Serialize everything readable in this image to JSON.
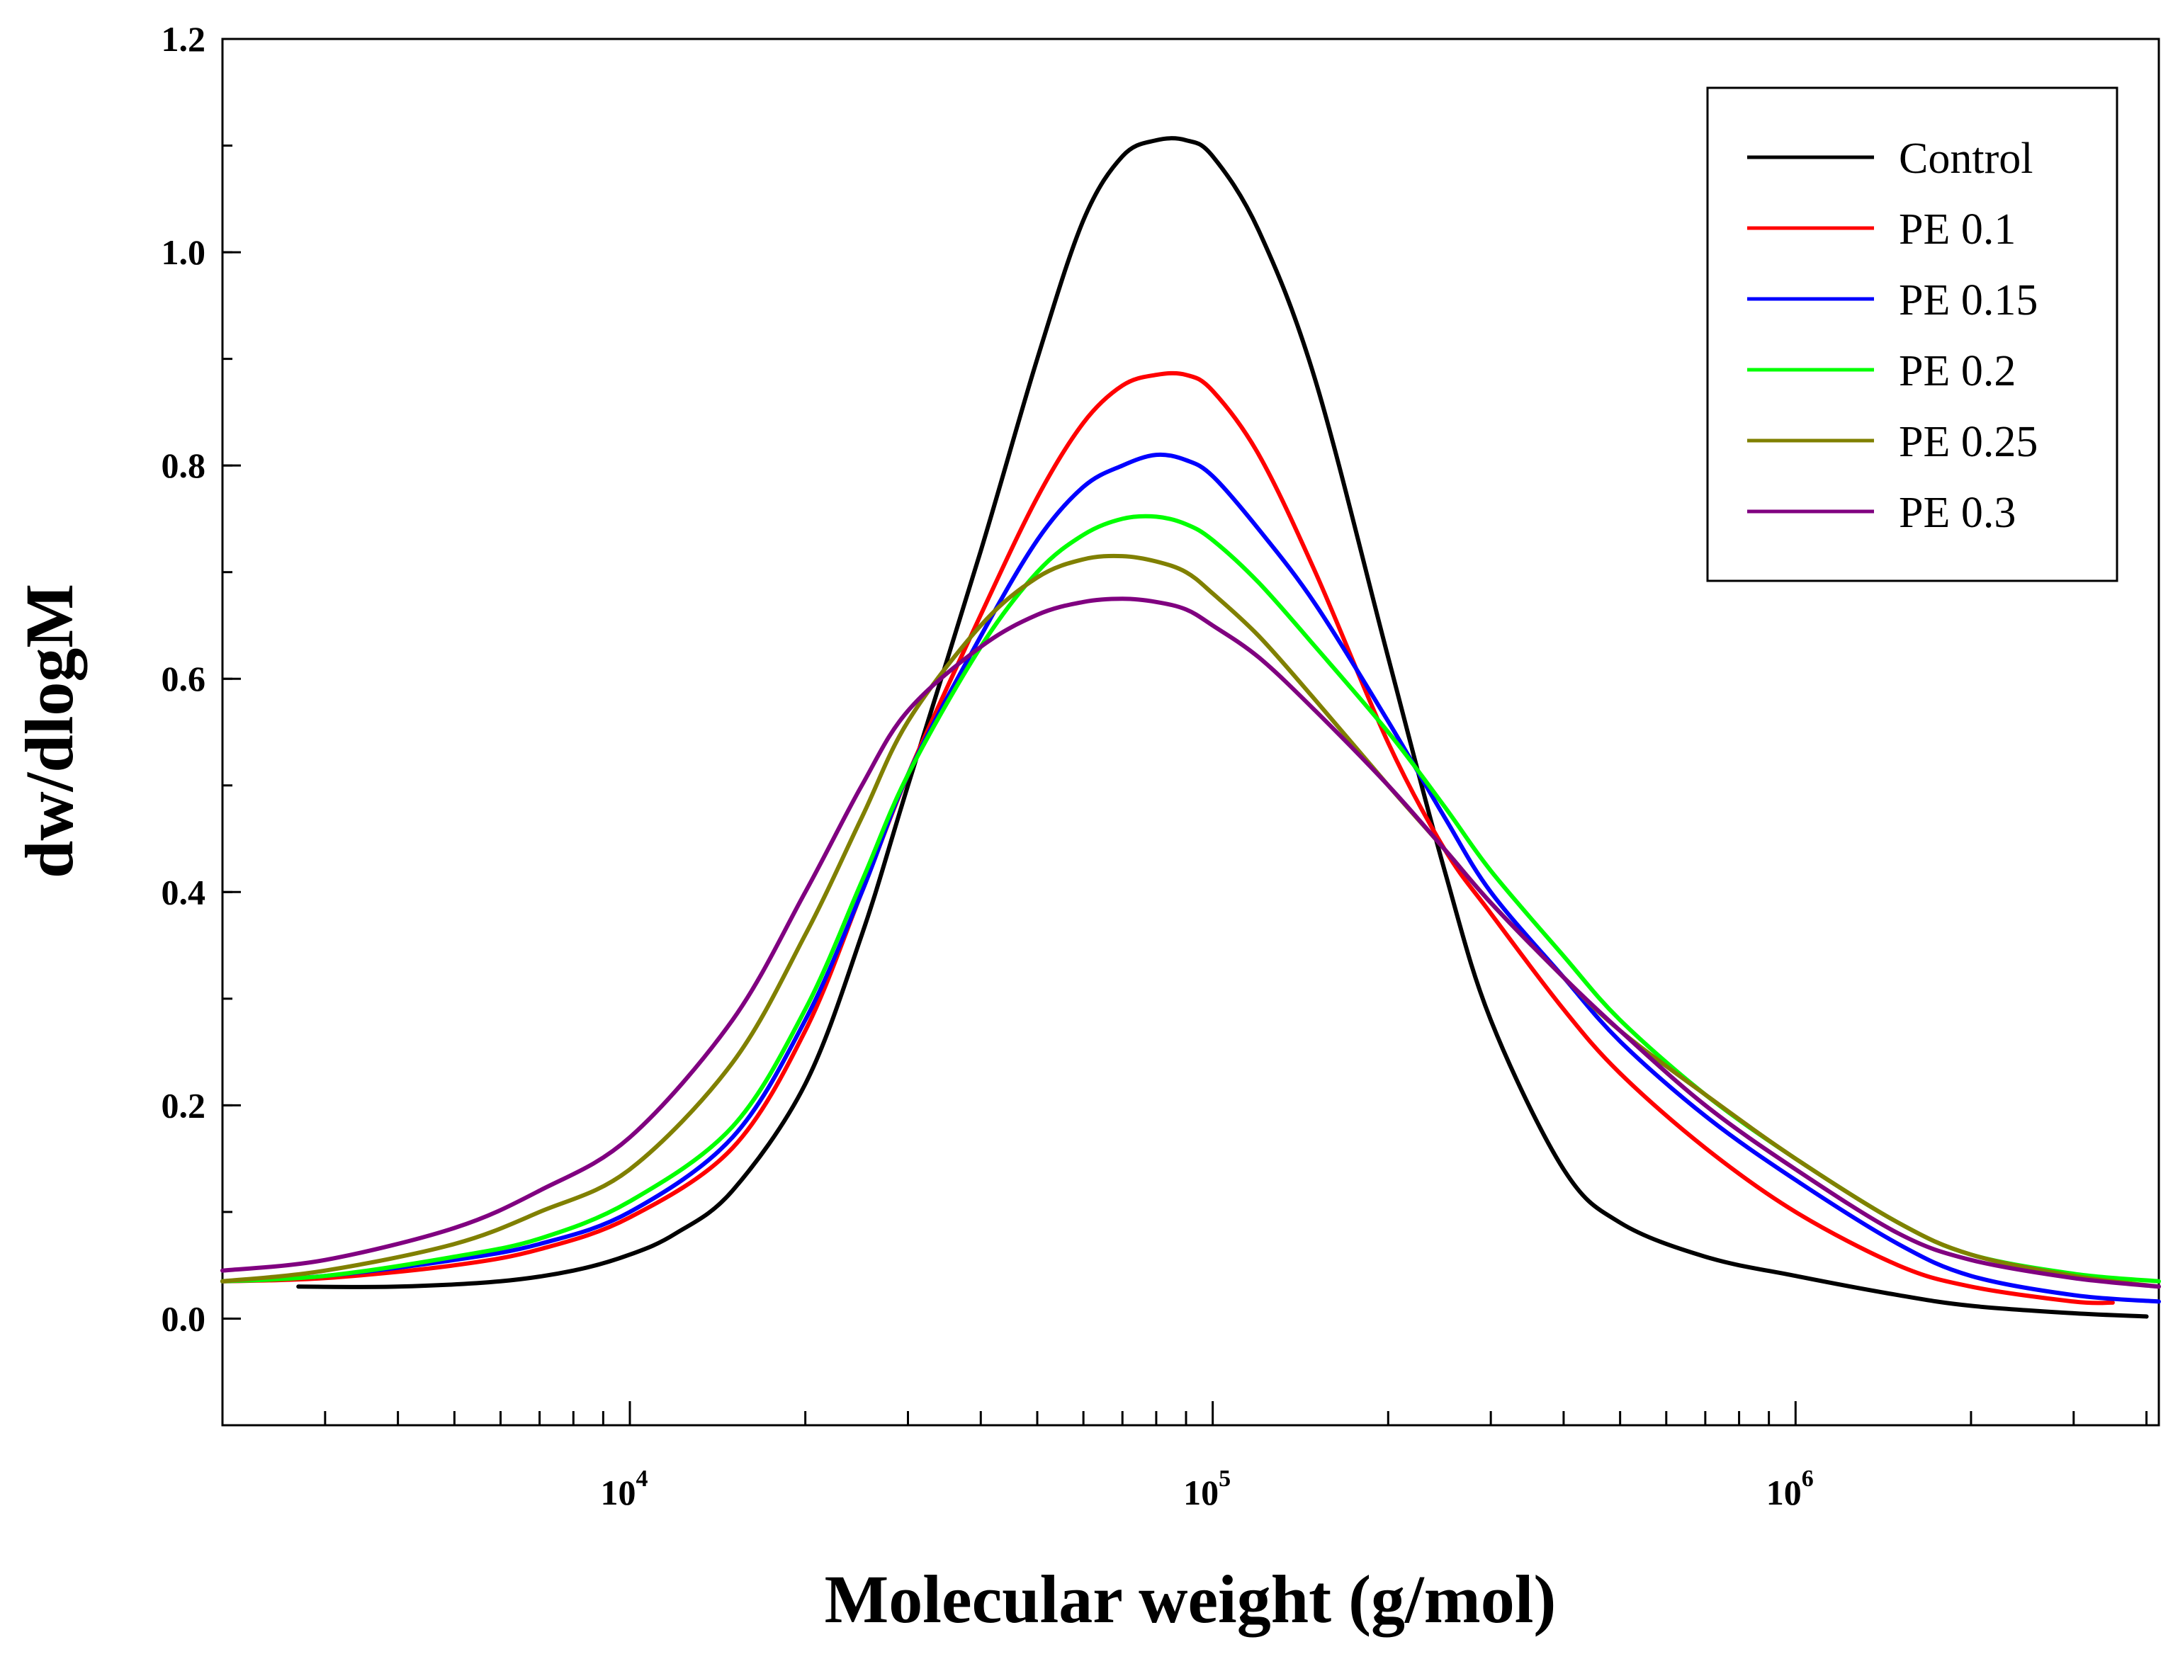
{
  "chart_data": {
    "type": "line",
    "title": "",
    "xlabel": "Molecular weight (g/mol)",
    "ylabel": "dw/dlogM",
    "xscale": "log",
    "xlim": [
      2000,
      4200000
    ],
    "ylim": [
      -0.1,
      1.2
    ],
    "x_ticks": [
      {
        "value": 10000,
        "base": "10",
        "exp": "4"
      },
      {
        "value": 100000,
        "base": "10",
        "exp": "5"
      },
      {
        "value": 1000000,
        "base": "10",
        "exp": "6"
      }
    ],
    "y_ticks": [
      {
        "value": 0.0,
        "label": "0.0"
      },
      {
        "value": 0.2,
        "label": "0.2"
      },
      {
        "value": 0.4,
        "label": "0.4"
      },
      {
        "value": 0.6,
        "label": "0.6"
      },
      {
        "value": 0.8,
        "label": "0.8"
      },
      {
        "value": 1.0,
        "label": "1.0"
      },
      {
        "value": 1.2,
        "label": "1.2"
      }
    ],
    "legend_position": "top-right",
    "series": [
      {
        "name": "Control",
        "color": "#000000",
        "x_min": 2700,
        "x_max": 4000000,
        "x": [
          2700,
          4000,
          6000,
          8000,
          10000,
          12000,
          15000,
          20000,
          25000,
          30000,
          40000,
          50000,
          60000,
          70000,
          80000,
          90000,
          100000,
          120000,
          150000,
          200000,
          250000,
          300000,
          400000,
          500000,
          700000,
          1000000,
          1500000,
          2000000,
          3000000,
          4000000
        ],
        "y": [
          0.03,
          0.03,
          0.035,
          0.045,
          0.06,
          0.08,
          0.12,
          0.22,
          0.36,
          0.5,
          0.72,
          0.9,
          1.03,
          1.09,
          1.105,
          1.105,
          1.09,
          1.02,
          0.88,
          0.62,
          0.42,
          0.28,
          0.14,
          0.09,
          0.058,
          0.04,
          0.022,
          0.012,
          0.005,
          0.002
        ]
      },
      {
        "name": "PE 0.1",
        "color": "#ff0000",
        "x_min": 2000,
        "x_max": 3500000,
        "x": [
          2000,
          3000,
          5000,
          7000,
          10000,
          15000,
          20000,
          25000,
          30000,
          40000,
          50000,
          60000,
          70000,
          80000,
          90000,
          100000,
          120000,
          150000,
          200000,
          250000,
          300000,
          400000,
          500000,
          700000,
          1000000,
          1500000,
          2000000,
          3000000,
          3500000
        ],
        "y": [
          0.035,
          0.038,
          0.05,
          0.065,
          0.095,
          0.16,
          0.27,
          0.4,
          0.51,
          0.66,
          0.77,
          0.84,
          0.875,
          0.885,
          0.885,
          0.87,
          0.81,
          0.7,
          0.54,
          0.44,
          0.38,
          0.29,
          0.23,
          0.16,
          0.1,
          0.05,
          0.03,
          0.016,
          0.015
        ]
      },
      {
        "name": "PE 0.15",
        "color": "#0000ff",
        "x_min": 2000,
        "x_max": 4200000,
        "x": [
          2000,
          3000,
          5000,
          7000,
          10000,
          15000,
          20000,
          25000,
          30000,
          40000,
          50000,
          60000,
          70000,
          80000,
          90000,
          100000,
          120000,
          150000,
          200000,
          250000,
          300000,
          400000,
          500000,
          700000,
          1000000,
          1500000,
          2000000,
          3000000,
          4200000
        ],
        "y": [
          0.035,
          0.04,
          0.055,
          0.07,
          0.1,
          0.17,
          0.28,
          0.4,
          0.51,
          0.64,
          0.73,
          0.78,
          0.8,
          0.81,
          0.805,
          0.79,
          0.74,
          0.67,
          0.56,
          0.47,
          0.4,
          0.32,
          0.26,
          0.19,
          0.13,
          0.07,
          0.04,
          0.022,
          0.016
        ]
      },
      {
        "name": "PE 0.2",
        "color": "#00ff00",
        "x_min": 2000,
        "x_max": 4200000,
        "x": [
          2000,
          3000,
          5000,
          7000,
          10000,
          15000,
          20000,
          25000,
          30000,
          40000,
          50000,
          60000,
          70000,
          80000,
          90000,
          100000,
          120000,
          150000,
          200000,
          250000,
          300000,
          400000,
          500000,
          700000,
          1000000,
          1500000,
          2000000,
          3000000,
          4200000
        ],
        "y": [
          0.035,
          0.04,
          0.058,
          0.075,
          0.11,
          0.18,
          0.29,
          0.41,
          0.51,
          0.63,
          0.7,
          0.735,
          0.75,
          0.752,
          0.745,
          0.73,
          0.69,
          0.63,
          0.55,
          0.48,
          0.42,
          0.34,
          0.28,
          0.21,
          0.15,
          0.09,
          0.06,
          0.042,
          0.035
        ]
      },
      {
        "name": "PE 0.25",
        "color": "#808000",
        "x_min": 2000,
        "x_max": 4200000,
        "x": [
          2000,
          3000,
          5000,
          7000,
          10000,
          15000,
          20000,
          25000,
          30000,
          40000,
          50000,
          60000,
          70000,
          80000,
          90000,
          100000,
          120000,
          150000,
          200000,
          250000,
          300000,
          400000,
          500000,
          700000,
          1000000,
          1500000,
          2000000,
          3000000,
          4200000
        ],
        "y": [
          0.035,
          0.045,
          0.07,
          0.1,
          0.14,
          0.24,
          0.36,
          0.47,
          0.56,
          0.65,
          0.695,
          0.712,
          0.715,
          0.71,
          0.7,
          0.68,
          0.64,
          0.58,
          0.5,
          0.44,
          0.39,
          0.32,
          0.27,
          0.21,
          0.15,
          0.09,
          0.06,
          0.04,
          0.03
        ]
      },
      {
        "name": "PE 0.3",
        "color": "#800080",
        "x_min": 2000,
        "x_max": 4200000,
        "x": [
          2000,
          3000,
          5000,
          7000,
          10000,
          15000,
          20000,
          25000,
          30000,
          40000,
          50000,
          60000,
          70000,
          80000,
          90000,
          100000,
          120000,
          150000,
          200000,
          250000,
          300000,
          400000,
          500000,
          700000,
          1000000,
          1500000,
          2000000,
          3000000,
          4200000
        ],
        "y": [
          0.045,
          0.055,
          0.085,
          0.12,
          0.17,
          0.28,
          0.4,
          0.5,
          0.57,
          0.63,
          0.66,
          0.672,
          0.675,
          0.672,
          0.665,
          0.65,
          0.62,
          0.57,
          0.5,
          0.44,
          0.39,
          0.32,
          0.27,
          0.2,
          0.14,
          0.08,
          0.055,
          0.038,
          0.03
        ]
      }
    ]
  }
}
